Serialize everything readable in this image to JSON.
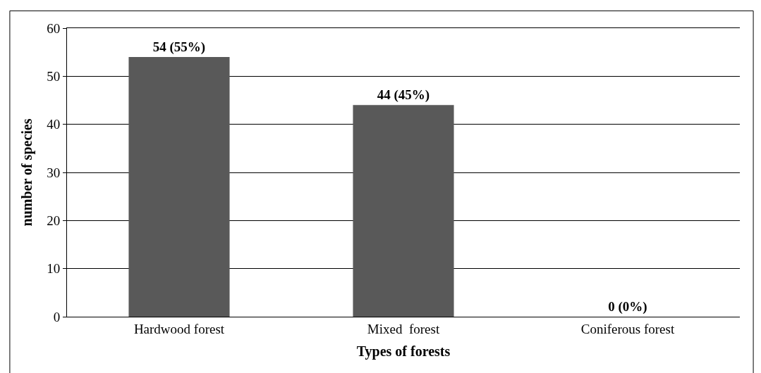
{
  "chart_data": {
    "type": "bar",
    "xlabel": "Types of forests",
    "ylabel": "number of species",
    "categories": [
      "Hardwood forest",
      "Mixed  forest",
      "Coniferous forest"
    ],
    "values": [
      54,
      44,
      0
    ],
    "value_labels": [
      "54 (55%)",
      "44 (45%)",
      "0 (0%)"
    ],
    "color": "#595959",
    "ylim": [
      0,
      60
    ],
    "yticks": [
      0,
      10,
      20,
      30,
      40,
      50,
      60
    ],
    "grid": "y",
    "legend": false
  }
}
